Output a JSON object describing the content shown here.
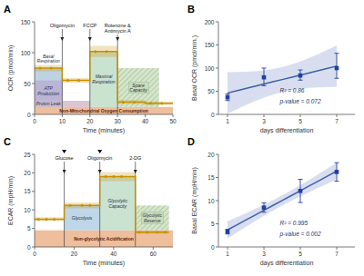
{
  "chart_data": [
    {
      "type": "line",
      "title": "A",
      "x_label": "Time (minutes)",
      "y_label": "OCR (pmol/min)",
      "xlim": [
        0,
        50
      ],
      "xticks": [
        0,
        10,
        20,
        30,
        40,
        50
      ],
      "ylim": [
        0,
        150
      ],
      "yticks": [
        0,
        50,
        100,
        150
      ],
      "regions": [
        {
          "label": "Non-Mitochondrial Oxygen Consumption",
          "x": [
            0,
            50
          ],
          "y": [
            0,
            12
          ],
          "color": "#e8a87c"
        },
        {
          "label": "Basal\nRespiration",
          "x": [
            0,
            10
          ],
          "y": [
            12,
            75
          ],
          "color": "#a8c4d8"
        },
        {
          "label": "Proton Leak",
          "x": [
            0,
            20
          ],
          "y": [
            12,
            22
          ],
          "color": "#d0b0c0"
        },
        {
          "label": "ATP\nProduction",
          "x": [
            0,
            10
          ],
          "y": [
            22,
            55
          ],
          "color": "#b8aad0"
        },
        {
          "label": "Maximal\nRespiration",
          "x": [
            20,
            30
          ],
          "y": [
            12,
            102
          ],
          "color": "#b8d8c0"
        },
        {
          "label": "Spare\nCapacity",
          "x": [
            30,
            45
          ],
          "y": [
            12,
            75
          ],
          "color": "#c8ddb8",
          "hatch": true
        }
      ],
      "series": [
        {
          "type": "line",
          "x": [
            0,
            10,
            10,
            20,
            20,
            30,
            30,
            40,
            40,
            50
          ],
          "values": [
            75,
            75,
            55,
            55,
            102,
            102,
            20,
            20,
            18,
            18
          ],
          "errors": [
            5,
            5,
            4,
            4,
            9,
            9,
            3,
            3,
            3,
            3
          ],
          "color": "#c89000"
        },
        {
          "type": "scatter",
          "marker": "circle",
          "x": [
            2,
            6,
            12,
            16,
            22,
            26,
            32,
            36,
            42,
            46
          ],
          "values": [
            75,
            75,
            55,
            55,
            102,
            102,
            20,
            20,
            18,
            18
          ],
          "color": "#c89000"
        }
      ],
      "annotations": [
        {
          "text": "Oligomycin",
          "x": 10
        },
        {
          "text": "FCCP",
          "x": 20
        },
        {
          "text": "Rotenone &\nAntimycin A",
          "x": 30
        }
      ]
    },
    {
      "type": "scatter",
      "title": "B",
      "x_label": "days differentiation",
      "y_label": "Basal OCR (pmol/min.)",
      "xlim": [
        0.5,
        8.0
      ],
      "xticks": [
        1,
        3,
        5,
        7
      ],
      "ylim": [
        0,
        200
      ],
      "yticks": [
        0,
        50,
        100,
        150,
        200
      ],
      "series": [
        {
          "type": "area",
          "x": [
            1,
            1.5,
            2,
            2.5,
            3,
            3.5,
            4,
            4.5,
            5,
            5.5,
            6,
            6.5,
            7
          ],
          "low": [
            1.31,
            10.8,
            19.88,
            28.4,
            36.15,
            42.88,
            48.37,
            52.53,
            55.45,
            57.35,
            58.48,
            59.05,
            59.21
          ],
          "high": [
            91.29,
            91.45,
            92.02,
            93.15,
            95.05,
            97.97,
            102.14,
            107.62,
            114.35,
            122.1,
            130.62,
            139.7,
            149.19
          ],
          "color": "#c8d0e8"
        },
        {
          "type": "line",
          "x": [
            1,
            1.5,
            2,
            2.5,
            3,
            3.5,
            4,
            4.5,
            5,
            5.5,
            6,
            6.5,
            7
          ],
          "values": [
            46.3,
            51.125,
            55.95,
            60.775,
            65.6,
            70.425,
            75.25,
            80.075,
            84.9,
            89.725,
            94.55,
            99.375,
            104.2
          ],
          "color": "#4060a8"
        },
        {
          "type": "scatter",
          "marker": "square",
          "x": [
            1,
            3,
            5,
            7
          ],
          "values": [
            37,
            80,
            84,
            100
          ],
          "error_low": [
            7,
            18,
            10,
            22
          ],
          "error_high": [
            7,
            20,
            12,
            32
          ],
          "color": "#2040a0"
        }
      ],
      "annotations": [
        {
          "text": "R² = 0.86"
        },
        {
          "text": "p-value = 0.072"
        }
      ]
    },
    {
      "type": "line",
      "title": "C",
      "x_label": "Time (minutes)",
      "y_label": "ECAR (mpH/min)",
      "xlim": [
        0,
        70
      ],
      "xticks": [
        0,
        20,
        40,
        60
      ],
      "ylim": [
        0,
        25
      ],
      "yticks": [
        0,
        5,
        10,
        15,
        20,
        25
      ],
      "regions": [
        {
          "label": "Non-glycolytic Acidification",
          "x": [
            0,
            70
          ],
          "y": [
            0,
            4.5
          ],
          "color": "#e8a87c"
        },
        {
          "label": "Glycolysis",
          "x": [
            15,
            33
          ],
          "y": [
            4.5,
            11.2
          ],
          "color": "#a8c8e0"
        },
        {
          "label": "Glycolytic\nCapacity",
          "x": [
            33,
            51
          ],
          "y": [
            4.5,
            19.0
          ],
          "color": "#b8d8c0"
        },
        {
          "label": "Glycolytic\nReserve",
          "x": [
            51,
            68
          ],
          "y": [
            4.5,
            11.2
          ],
          "color": "#c8ddb8",
          "hatch": true
        }
      ],
      "series": [
        {
          "type": "line",
          "x": [
            0,
            15,
            15,
            33,
            33,
            51,
            51,
            68
          ],
          "values": [
            7.5,
            7.5,
            11.2,
            11.2,
            19.0,
            19.0,
            4.0,
            4.0
          ],
          "errors": [
            0.5,
            0.5,
            0.8,
            0.8,
            1.2,
            1.2,
            0.4,
            0.4
          ],
          "color": "#c89000"
        },
        {
          "type": "scatter",
          "marker": "circle",
          "x": [
            2,
            6,
            10,
            18,
            24,
            28,
            36,
            40,
            44,
            53,
            57,
            62,
            66
          ],
          "values": [
            7.5,
            7.5,
            7.5,
            11.2,
            11.2,
            11.2,
            19.0,
            19.0,
            19.0,
            4.0,
            4.0,
            4.0,
            4.0
          ],
          "color": "#c89000"
        }
      ],
      "annotations": [
        {
          "text": "Glucose",
          "x": 15
        },
        {
          "text": "Oligomycin",
          "x": 33
        },
        {
          "text": "2-DG",
          "x": 51
        }
      ],
      "injection_markers": [
        15,
        33
      ]
    },
    {
      "type": "scatter",
      "title": "D",
      "x_label": "days differentiation",
      "y_label": "Basal ECAR (mpH/min)",
      "xlim": [
        0.5,
        8.0
      ],
      "xticks": [
        1,
        3,
        5,
        7
      ],
      "ylim": [
        0,
        20
      ],
      "yticks": [
        0,
        5,
        10,
        15,
        20
      ],
      "series": [
        {
          "type": "area",
          "x": [
            1,
            1.5,
            2,
            2.5,
            3,
            3.5,
            4,
            4.5,
            5,
            5.5,
            6,
            6.5,
            7
          ],
          "low": [
            1.84,
            3.09,
            4.32,
            5.53,
            6.71,
            7.84,
            8.93,
            9.96,
            10.94,
            11.87,
            12.78,
            13.66,
            14.53
          ],
          "high": [
            5.52,
            6.39,
            7.27,
            8.18,
            9.12,
            10.09,
            11.13,
            12.21,
            13.35,
            14.52,
            15.73,
            16.96,
            18.21
          ],
          "color": "#c8d0e8"
        },
        {
          "type": "line",
          "x": [
            1,
            1.5,
            2,
            2.5,
            3,
            3.5,
            4,
            4.5,
            5,
            5.5,
            6,
            6.5,
            7
          ],
          "values": [
            3.68,
            4.7375,
            5.795,
            6.8525,
            7.91,
            8.9675,
            10.025,
            11.0825,
            12.14,
            13.1975,
            14.255,
            15.3125,
            16.37
          ],
          "color": "#4060a8"
        },
        {
          "type": "scatter",
          "marker": "square",
          "x": [
            1,
            3,
            5,
            7
          ],
          "values": [
            3.3,
            8.5,
            12.1,
            16.2
          ],
          "error_low": [
            0.5,
            1.0,
            2.5,
            2.0
          ],
          "error_high": [
            0.5,
            1.0,
            2.5,
            2.0
          ],
          "color": "#2040a0"
        }
      ],
      "annotations": [
        {
          "text": "R² = 0.995"
        },
        {
          "text": "p-value = 0.002"
        }
      ]
    }
  ]
}
